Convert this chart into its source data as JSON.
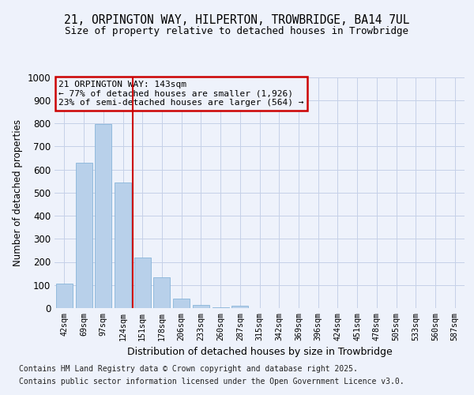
{
  "title_line1": "21, ORPINGTON WAY, HILPERTON, TROWBRIDGE, BA14 7UL",
  "title_line2": "Size of property relative to detached houses in Trowbridge",
  "xlabel": "Distribution of detached houses by size in Trowbridge",
  "ylabel": "Number of detached properties",
  "categories": [
    "42sqm",
    "69sqm",
    "97sqm",
    "124sqm",
    "151sqm",
    "178sqm",
    "206sqm",
    "233sqm",
    "260sqm",
    "287sqm",
    "315sqm",
    "342sqm",
    "369sqm",
    "396sqm",
    "424sqm",
    "451sqm",
    "478sqm",
    "505sqm",
    "533sqm",
    "560sqm",
    "587sqm"
  ],
  "values": [
    107,
    630,
    795,
    545,
    220,
    135,
    42,
    15,
    5,
    10,
    0,
    0,
    0,
    0,
    0,
    0,
    0,
    0,
    0,
    0,
    0
  ],
  "bar_color": "#b8d0ea",
  "bar_edge_color": "#7aadd4",
  "vline_x_pos": 3.5,
  "vline_color": "#cc0000",
  "annotation_title": "21 ORPINGTON WAY: 143sqm",
  "annotation_line2": "← 77% of detached houses are smaller (1,926)",
  "annotation_line3": "23% of semi-detached houses are larger (564) →",
  "annotation_box_color": "#cc0000",
  "footer_line1": "Contains HM Land Registry data © Crown copyright and database right 2025.",
  "footer_line2": "Contains public sector information licensed under the Open Government Licence v3.0.",
  "ylim": [
    0,
    1000
  ],
  "yticks": [
    0,
    100,
    200,
    300,
    400,
    500,
    600,
    700,
    800,
    900,
    1000
  ],
  "background_color": "#eef2fb",
  "grid_color": "#c5d0e8"
}
